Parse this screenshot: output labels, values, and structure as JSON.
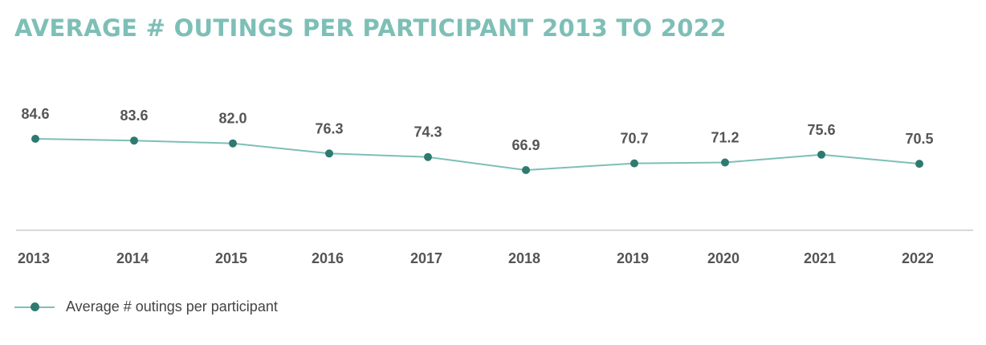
{
  "chart_data": {
    "type": "line",
    "title": "AVERAGE # OUTINGS PER PARTICIPANT 2013 TO 2022",
    "categories": [
      "2013",
      "2014",
      "2015",
      "2016",
      "2017",
      "2018",
      "2019",
      "2020",
      "2021",
      "2022"
    ],
    "series": [
      {
        "name": "Average # outings per participant",
        "values": [
          84.6,
          83.6,
          82.0,
          76.3,
          74.3,
          66.9,
          70.7,
          71.2,
          75.6,
          70.5
        ],
        "labels": [
          "84.6",
          "83.6",
          "82.0",
          "76.3",
          "74.3",
          "66.9",
          "70.7",
          "71.2",
          "75.6",
          "70.5"
        ]
      }
    ],
    "grid": false,
    "legend_position": "bottom-left",
    "colors": {
      "title": "#7dbfb7",
      "line": "#7dbfb7",
      "marker": "#2e7a70",
      "axis": "#cccccc",
      "text": "#555555"
    }
  }
}
